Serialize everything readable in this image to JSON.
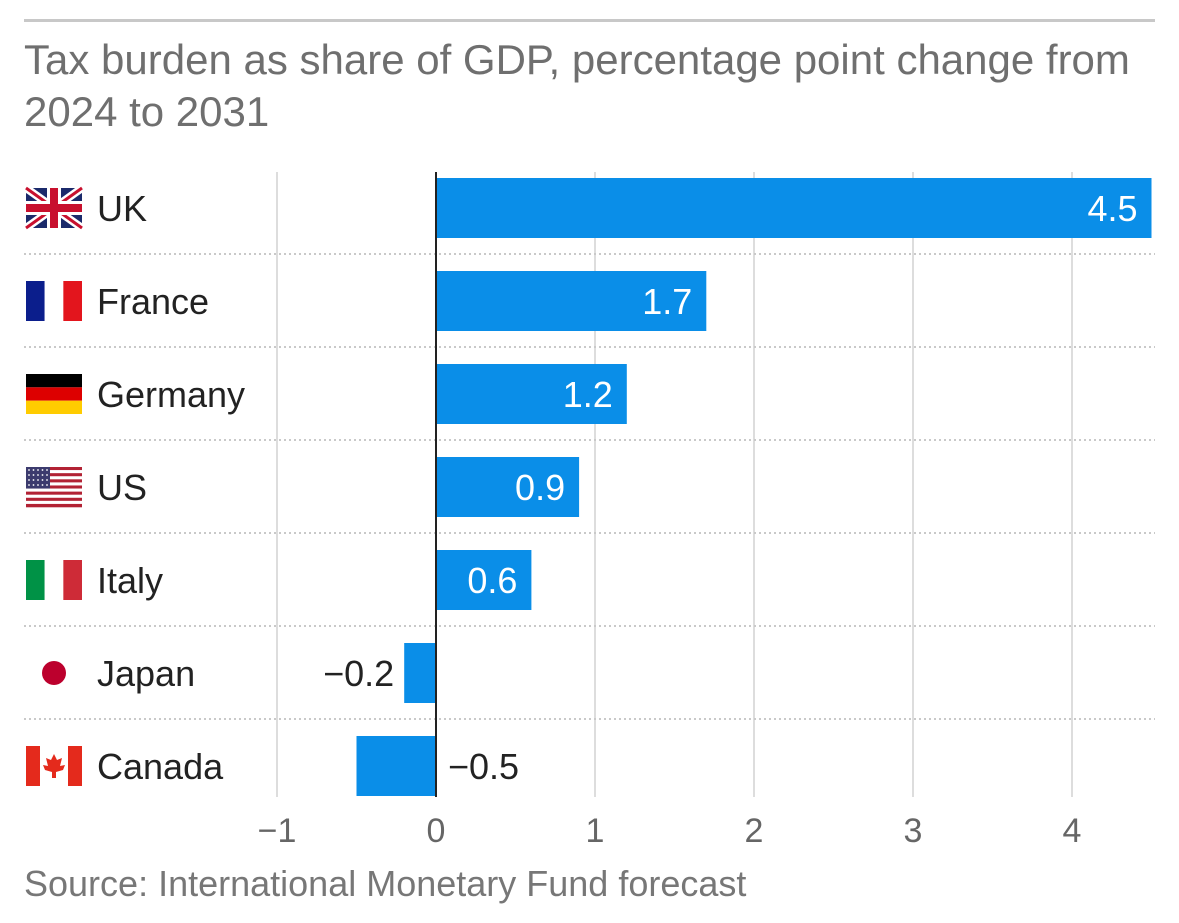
{
  "chart_data": {
    "type": "bar",
    "orientation": "horizontal",
    "title": "Tax burden as share of GDP, percentage point change from 2024 to 2031",
    "source": "Source: International Monetary Fund forecast",
    "categories": [
      "UK",
      "France",
      "Germany",
      "US",
      "Italy",
      "Japan",
      "Canada"
    ],
    "values": [
      4.5,
      1.7,
      1.2,
      0.9,
      0.6,
      -0.2,
      -0.5
    ],
    "value_labels": [
      "4.5",
      "1.7",
      "1.2",
      "0.9",
      "0.6",
      "−0.2",
      "−0.5"
    ],
    "xlim": [
      -1,
      4.5
    ],
    "xticks": [
      -1,
      0,
      1,
      2,
      3,
      4
    ],
    "xtick_labels": [
      "−1",
      "0",
      "1",
      "2",
      "3",
      "4"
    ],
    "bar_color": "#0a8ee8",
    "grid": true,
    "flags": [
      "uk-flag",
      "france-flag",
      "germany-flag",
      "us-flag",
      "italy-flag",
      "japan-flag",
      "canada-flag"
    ]
  }
}
